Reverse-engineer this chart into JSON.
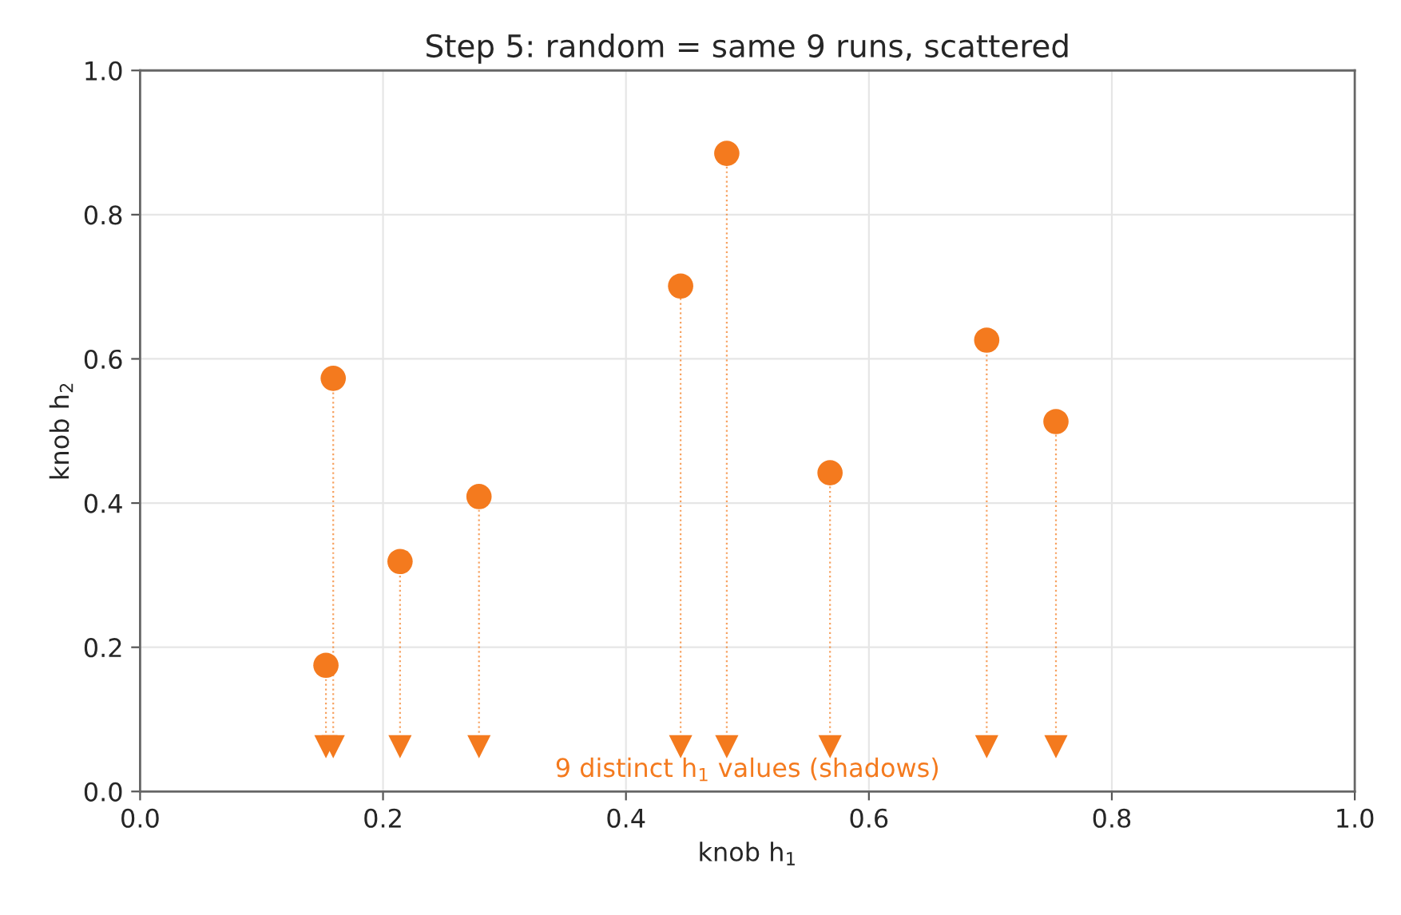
{
  "chart_data": {
    "type": "scatter",
    "title": "Step 5: random = same 9 runs, scattered",
    "xlabel": "knob h$_{1}$",
    "ylabel": "knob h$_{2}$",
    "x": [
      0.153,
      0.159,
      0.214,
      0.279,
      0.445,
      0.483,
      0.568,
      0.697,
      0.754
    ],
    "series": [
      {
        "color": "#f47a1e",
        "marker": "circle",
        "values": [
          0.175,
          0.573,
          0.319,
          0.409,
          0.701,
          0.885,
          0.442,
          0.626,
          0.513
        ],
        "line_style": "dotted",
        "errors": [
          [
            0.062,
            0.175
          ],
          [
            0.062,
            0.573
          ],
          [
            0.062,
            0.319
          ],
          [
            0.062,
            0.409
          ],
          [
            0.062,
            0.701
          ],
          [
            0.062,
            0.885
          ],
          [
            0.062,
            0.442
          ],
          [
            0.062,
            0.626
          ],
          [
            0.062,
            0.513
          ]
        ]
      },
      {
        "color": "#f47a1e",
        "marker": "triangle",
        "values": [
          0.062,
          0.062,
          0.062,
          0.062,
          0.062,
          0.062,
          0.062,
          0.062,
          0.062
        ]
      }
    ],
    "annotations": [
      "9 distinct h$_{1}$ values (shadows)"
    ],
    "xlim": [
      0,
      1
    ],
    "ylim": [
      0,
      1
    ],
    "xticks": [
      {
        "value": 0,
        "label": "0.0"
      },
      {
        "value": 0.2,
        "label": "0.2"
      },
      {
        "value": 0.4,
        "label": "0.4"
      },
      {
        "value": 0.6,
        "label": "0.6"
      },
      {
        "value": 0.8,
        "label": "0.8"
      },
      {
        "value": 1,
        "label": "1.0"
      }
    ],
    "yticks": [
      {
        "value": 0,
        "label": "0.0"
      },
      {
        "value": 0.2,
        "label": "0.2"
      },
      {
        "value": 0.4,
        "label": "0.4"
      },
      {
        "value": 0.6,
        "label": "0.6"
      },
      {
        "value": 0.8,
        "label": "0.8"
      },
      {
        "value": 1,
        "label": "1.0"
      }
    ],
    "grid": true,
    "legend": false
  }
}
